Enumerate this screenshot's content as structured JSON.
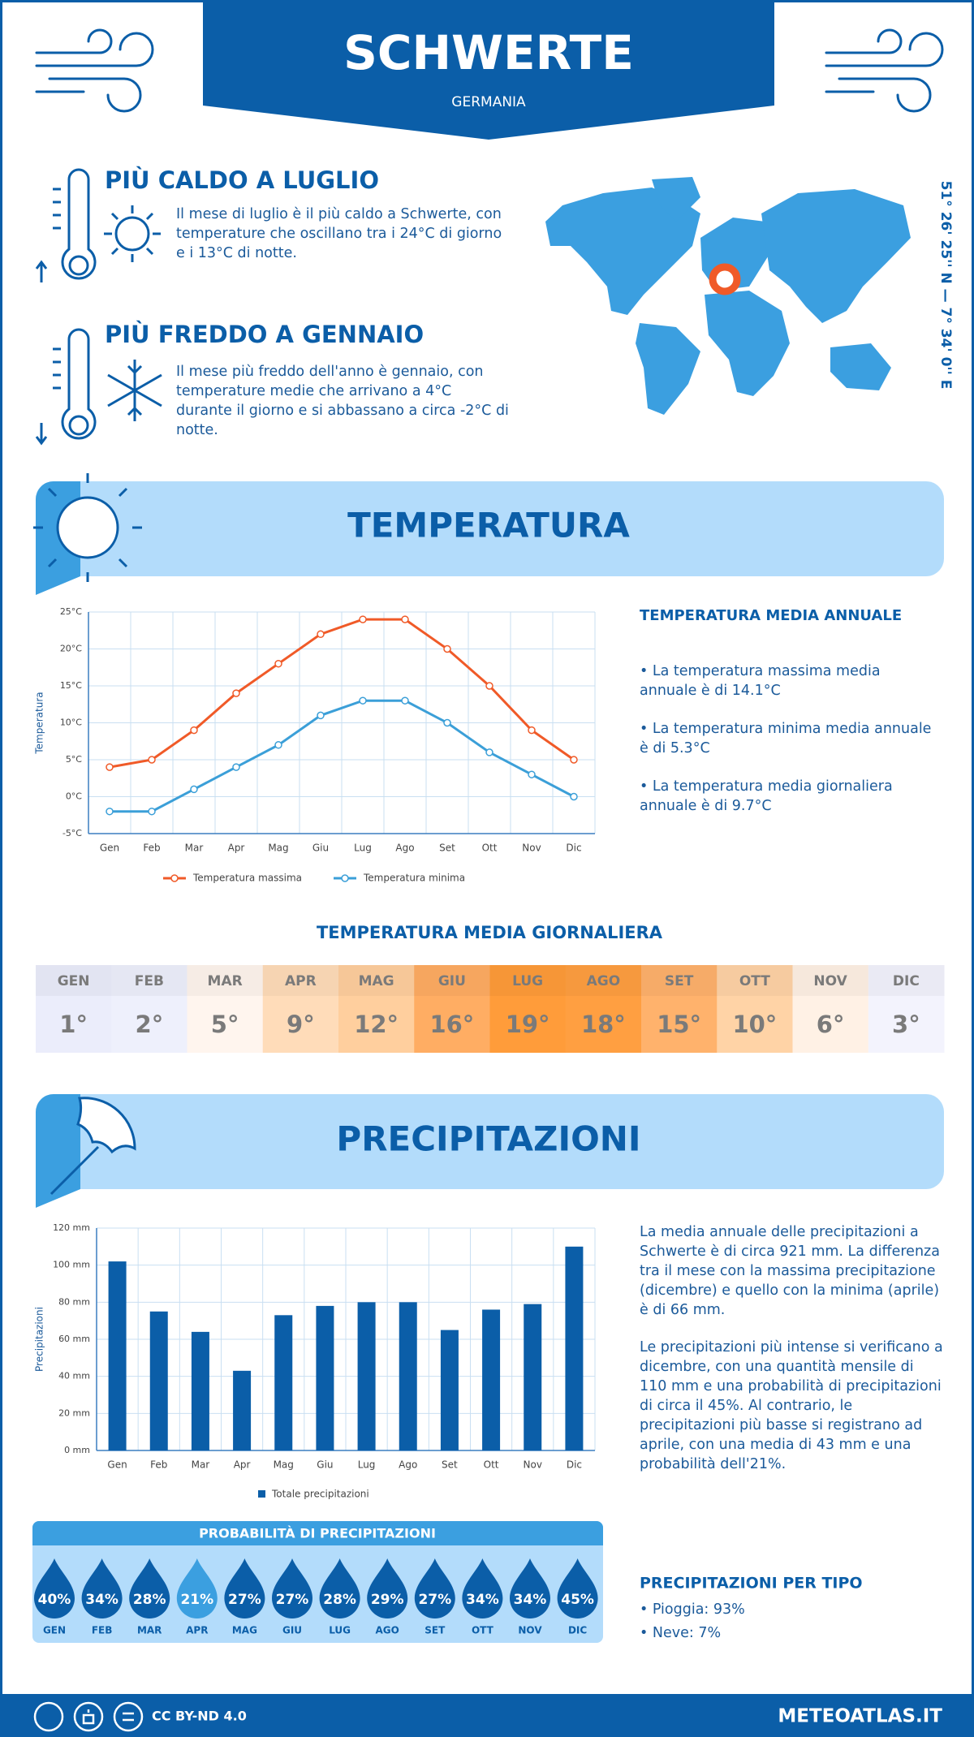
{
  "header": {
    "title": "SCHWERTE",
    "subtitle": "GERMANIA"
  },
  "coordinates": "51° 26' 25'' N — 7° 34' 0'' E",
  "hottest": {
    "title": "PIÙ CALDO A LUGLIO",
    "text": "Il mese di luglio è il più caldo a Schwerte, con temperature che oscillano tra i 24°C di giorno e i 13°C di notte."
  },
  "coldest": {
    "title": "PIÙ FREDDO A GENNAIO",
    "text": "Il mese più freddo dell'anno è gennaio, con temperature medie che arrivano a 4°C durante il giorno e si abbassano a circa -2°C di notte."
  },
  "temperature": {
    "title": "TEMPERATURA",
    "summary_title": "TEMPERATURA MEDIA ANNUALE",
    "bullets": [
      "La temperatura massima media annuale è di 14.1°C",
      "La temperatura minima media annuale è di 5.3°C",
      "La temperatura media giornaliera annuale è di 9.7°C"
    ],
    "daily_title": "TEMPERATURA MEDIA GIORNALIERA",
    "daily": {
      "months": [
        "GEN",
        "FEB",
        "MAR",
        "APR",
        "MAG",
        "GIU",
        "LUG",
        "AGO",
        "SET",
        "OTT",
        "NOV",
        "DIC"
      ],
      "values": [
        "1°",
        "2°",
        "5°",
        "9°",
        "12°",
        "16°",
        "19°",
        "18°",
        "15°",
        "10°",
        "6°",
        "3°"
      ],
      "colors": [
        "#ebedfb",
        "#eef0fc",
        "#fff5ee",
        "#ffdcb9",
        "#ffcf9e",
        "#ffad63",
        "#ff9c3a",
        "#ff9f41",
        "#ffb26c",
        "#ffd3a6",
        "#fff1e5",
        "#f3f3fd"
      ]
    }
  },
  "precipitation": {
    "title": "PRECIPITAZIONI",
    "paragraphs": [
      "La media annuale delle precipitazioni a Schwerte è di circa 921 mm. La differenza tra il mese con la massima precipitazione (dicembre) e quello con la minima (aprile) è di 66 mm.",
      "Le precipitazioni più intense si verificano a dicembre, con una quantità mensile di 110 mm e una probabilità di precipitazioni di circa il 45%. Al contrario, le precipitazioni più basse si registrano ad aprile, con una media di 43 mm e una probabilità dell'21%."
    ],
    "probability": {
      "title": "PROBABILITÀ DI PRECIPITAZIONI",
      "months": [
        "GEN",
        "FEB",
        "MAR",
        "APR",
        "MAG",
        "GIU",
        "LUG",
        "AGO",
        "SET",
        "OTT",
        "NOV",
        "DIC"
      ],
      "labels": [
        "40%",
        "34%",
        "28%",
        "21%",
        "27%",
        "27%",
        "28%",
        "29%",
        "27%",
        "34%",
        "34%",
        "45%"
      ],
      "colors": [
        "#0b5ea8",
        "#0b5ea8",
        "#0b5ea8",
        "#3b9fe0",
        "#0b5ea8",
        "#0b5ea8",
        "#0b5ea8",
        "#0b5ea8",
        "#0b5ea8",
        "#0b5ea8",
        "#0b5ea8",
        "#0b5ea8"
      ]
    },
    "by_type_title": "PRECIPITAZIONI PER TIPO",
    "by_type": [
      "Pioggia: 93%",
      "Neve: 7%"
    ]
  },
  "chart_data": [
    {
      "type": "line",
      "y_label": "Temperatura",
      "categories": [
        "Gen",
        "Feb",
        "Mar",
        "Apr",
        "Mag",
        "Giu",
        "Lug",
        "Ago",
        "Set",
        "Ott",
        "Nov",
        "Dic"
      ],
      "series": [
        {
          "name": "Temperatura massima",
          "color": "#f05a28",
          "values": [
            4,
            5,
            9,
            14,
            18,
            22,
            24,
            24,
            20,
            15,
            9,
            5
          ]
        },
        {
          "name": "Temperatura minima",
          "color": "#3b9fd8",
          "values": [
            -2,
            -2,
            1,
            4,
            7,
            11,
            13,
            13,
            10,
            6,
            3,
            0
          ]
        }
      ],
      "ylim": [
        -5,
        25
      ],
      "yticks": [
        {
          "value": -5,
          "label": "-5°C"
        },
        {
          "value": 0,
          "label": "0°C"
        },
        {
          "value": 5,
          "label": "5°C"
        },
        {
          "value": 10,
          "label": "10°C"
        },
        {
          "value": 15,
          "label": "15°C"
        },
        {
          "value": 20,
          "label": "20°C"
        },
        {
          "value": 25,
          "label": "25°C"
        }
      ],
      "grid": true
    },
    {
      "type": "bar",
      "y_label": "Precipitazioni",
      "categories": [
        "Gen",
        "Feb",
        "Mar",
        "Apr",
        "Mag",
        "Giu",
        "Lug",
        "Ago",
        "Set",
        "Ott",
        "Nov",
        "Dic"
      ],
      "series": [
        {
          "name": "Totale precipitazioni",
          "color": "#0b5ea8",
          "values": [
            102,
            75,
            64,
            43,
            73,
            78,
            80,
            80,
            65,
            76,
            79,
            110
          ]
        }
      ],
      "ylim": [
        0,
        120
      ],
      "yticks": [
        {
          "value": 0,
          "label": "0 mm"
        },
        {
          "value": 20,
          "label": "20 mm"
        },
        {
          "value": 40,
          "label": "40 mm"
        },
        {
          "value": 60,
          "label": "60 mm"
        },
        {
          "value": 80,
          "label": "80 mm"
        },
        {
          "value": 100,
          "label": "100 mm"
        },
        {
          "value": 120,
          "label": "120 mm"
        }
      ],
      "grid": true
    }
  ],
  "footer": {
    "license": "CC BY-ND 4.0",
    "site": "METEOATLAS.IT"
  }
}
